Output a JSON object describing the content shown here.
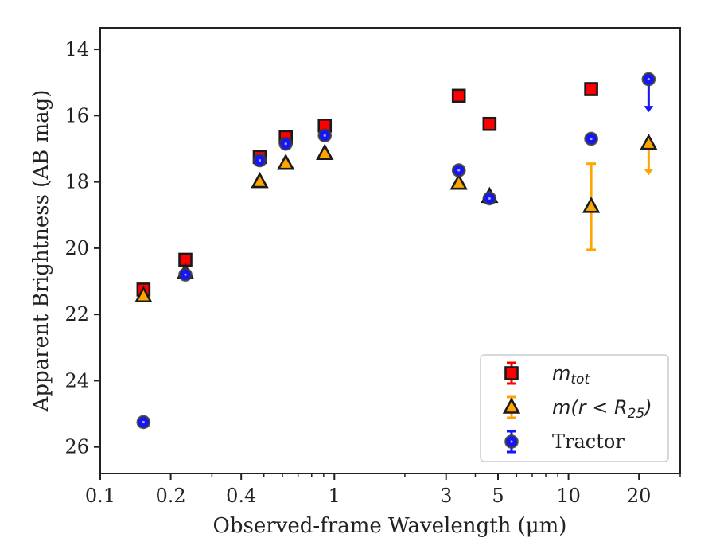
{
  "chart_data": {
    "type": "scatter",
    "xlabel": "Observed-frame Wavelength (μm)",
    "ylabel": "Apparent Brightness (AB mag)",
    "xscale": "log",
    "xlim": [
      0.1,
      30
    ],
    "ylim": [
      26.8,
      13.35
    ],
    "y_inverted": true,
    "grid": false,
    "legend_placement": "lower-right",
    "xticks": [
      {
        "value": 0.1,
        "label": "0.1"
      },
      {
        "value": 0.2,
        "label": "0.2"
      },
      {
        "value": 0.4,
        "label": "0.4"
      },
      {
        "value": 1,
        "label": "1"
      },
      {
        "value": 3,
        "label": "3"
      },
      {
        "value": 5,
        "label": "5"
      },
      {
        "value": 10,
        "label": "10"
      },
      {
        "value": 20,
        "label": "20"
      }
    ],
    "yticks": [
      {
        "value": 14,
        "label": "14"
      },
      {
        "value": 16,
        "label": "16"
      },
      {
        "value": 18,
        "label": "18"
      },
      {
        "value": 20,
        "label": "20"
      },
      {
        "value": 22,
        "label": "22"
      },
      {
        "value": 24,
        "label": "24"
      },
      {
        "value": 26,
        "label": "26"
      }
    ],
    "series": [
      {
        "name": "m_tot",
        "legend_main": "m",
        "legend_sub": "tot",
        "marker": "square",
        "color": "#ff0000",
        "edge": "#1a1a1a",
        "points": [
          {
            "x": 0.153,
            "y": 21.25
          },
          {
            "x": 0.231,
            "y": 20.35
          },
          {
            "x": 0.48,
            "y": 17.25
          },
          {
            "x": 0.62,
            "y": 16.65
          },
          {
            "x": 0.91,
            "y": 16.3
          },
          {
            "x": 3.4,
            "y": 15.4
          },
          {
            "x": 4.6,
            "y": 16.25
          },
          {
            "x": 12.5,
            "y": 15.2
          }
        ]
      },
      {
        "name": "m(r < R25)",
        "legend_main": "m(r < R",
        "legend_sub": "25",
        "legend_tail": ")",
        "marker": "triangle",
        "color": "#ffa500",
        "edge": "#1a1a1a",
        "points": [
          {
            "x": 0.153,
            "y": 21.45
          },
          {
            "x": 0.231,
            "y": 20.75
          },
          {
            "x": 0.48,
            "y": 18.0
          },
          {
            "x": 0.62,
            "y": 17.45
          },
          {
            "x": 0.91,
            "y": 17.15
          },
          {
            "x": 3.4,
            "y": 18.05
          },
          {
            "x": 4.6,
            "y": 18.45
          },
          {
            "x": 12.5,
            "y": 18.75,
            "yerr_low": 17.45,
            "yerr_high": 20.05
          },
          {
            "x": 22,
            "y": 16.85,
            "upper_limit": true,
            "arrow_to": 17.8
          }
        ]
      },
      {
        "name": "Tractor",
        "legend_main": "Tractor",
        "marker": "circle",
        "color": "#1414ff",
        "edge": "#3a3a3a",
        "points": [
          {
            "x": 0.153,
            "y": 25.25
          },
          {
            "x": 0.231,
            "y": 20.8
          },
          {
            "x": 0.48,
            "y": 17.35
          },
          {
            "x": 0.62,
            "y": 16.85
          },
          {
            "x": 0.91,
            "y": 16.6
          },
          {
            "x": 3.4,
            "y": 17.65
          },
          {
            "x": 4.6,
            "y": 18.5
          },
          {
            "x": 12.5,
            "y": 16.7
          },
          {
            "x": 22,
            "y": 14.9,
            "upper_limit": true,
            "arrow_to": 15.9
          }
        ]
      }
    ]
  }
}
